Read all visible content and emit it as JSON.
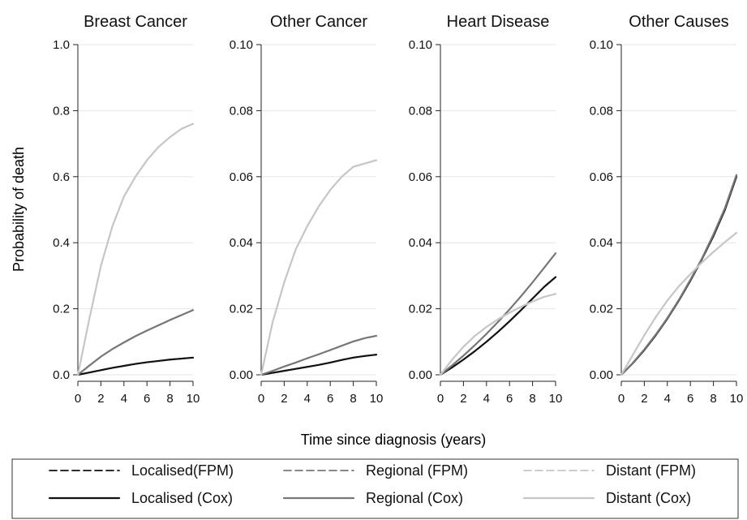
{
  "figure": {
    "ylabel": "Probability of death",
    "xlabel": "Time since diagnosis (years)"
  },
  "colors": {
    "localised": "#111111",
    "regional": "#777777",
    "distant": "#c6c6c6",
    "grid": "#e6e6e6",
    "axis": "#222222",
    "legend_border": "#333333"
  },
  "legend": {
    "items": [
      {
        "label": "Localised(FPM)",
        "group": "localised",
        "style": "dash"
      },
      {
        "label": "Regional (FPM)",
        "group": "regional",
        "style": "dash"
      },
      {
        "label": "Distant (FPM)",
        "group": "distant",
        "style": "dash"
      },
      {
        "label": "Localised (Cox)",
        "group": "localised",
        "style": "solid"
      },
      {
        "label": "Regional (Cox)",
        "group": "regional",
        "style": "solid"
      },
      {
        "label": "Distant (Cox)",
        "group": "distant",
        "style": "solid"
      }
    ]
  },
  "chart_data": [
    {
      "type": "line",
      "title": "Breast Cancer",
      "xlabel": "Time since diagnosis (years)",
      "ylabel": "Probability of death",
      "xlim": [
        0,
        10
      ],
      "ylim": [
        0,
        1.0
      ],
      "xticks": [
        0,
        2,
        4,
        6,
        8,
        10
      ],
      "yticks": [
        0,
        0.2,
        0.4,
        0.6,
        0.8,
        1.0
      ],
      "ytick_labels": [
        "0.0",
        "0.2",
        "0.4",
        "0.6",
        "0.8",
        "1.0"
      ],
      "x": [
        0,
        1,
        2,
        3,
        4,
        5,
        6,
        7,
        8,
        9,
        10
      ],
      "grid": true,
      "series": [
        {
          "name": "Localised(FPM)",
          "group": "localised",
          "style": "dash",
          "values": [
            0,
            0.007,
            0.014,
            0.021,
            0.027,
            0.033,
            0.038,
            0.042,
            0.046,
            0.049,
            0.052
          ]
        },
        {
          "name": "Localised (Cox)",
          "group": "localised",
          "style": "solid",
          "values": [
            0,
            0.007,
            0.014,
            0.021,
            0.027,
            0.033,
            0.038,
            0.042,
            0.046,
            0.049,
            0.052
          ]
        },
        {
          "name": "Regional (FPM)",
          "group": "regional",
          "style": "dash",
          "values": [
            0,
            0.028,
            0.055,
            0.078,
            0.098,
            0.117,
            0.134,
            0.15,
            0.166,
            0.181,
            0.196
          ]
        },
        {
          "name": "Regional (Cox)",
          "group": "regional",
          "style": "solid",
          "values": [
            0,
            0.028,
            0.055,
            0.078,
            0.098,
            0.117,
            0.134,
            0.15,
            0.166,
            0.181,
            0.196
          ]
        },
        {
          "name": "Distant (FPM)",
          "group": "distant",
          "style": "dash",
          "values": [
            0,
            0.17,
            0.33,
            0.45,
            0.54,
            0.6,
            0.65,
            0.69,
            0.72,
            0.745,
            0.76
          ]
        },
        {
          "name": "Distant (Cox)",
          "group": "distant",
          "style": "solid",
          "values": [
            0,
            0.17,
            0.33,
            0.45,
            0.54,
            0.6,
            0.65,
            0.69,
            0.72,
            0.745,
            0.76
          ]
        }
      ]
    },
    {
      "type": "line",
      "title": "Other Cancer",
      "xlabel": "Time since diagnosis (years)",
      "ylabel": "Probability of death",
      "xlim": [
        0,
        10
      ],
      "ylim": [
        0,
        0.1
      ],
      "xticks": [
        0,
        2,
        4,
        6,
        8,
        10
      ],
      "yticks": [
        0,
        0.02,
        0.04,
        0.06,
        0.08,
        0.1
      ],
      "ytick_labels": [
        "0.00",
        "0.02",
        "0.04",
        "0.06",
        "0.08",
        "0.10"
      ],
      "x": [
        0,
        1,
        2,
        3,
        4,
        5,
        6,
        7,
        8,
        9,
        10
      ],
      "grid": true,
      "series": [
        {
          "name": "Localised(FPM)",
          "group": "localised",
          "style": "dash",
          "values": [
            0,
            0.0006,
            0.0012,
            0.0018,
            0.0024,
            0.003,
            0.0037,
            0.0045,
            0.0052,
            0.0057,
            0.0061
          ]
        },
        {
          "name": "Localised (Cox)",
          "group": "localised",
          "style": "solid",
          "values": [
            0,
            0.0006,
            0.0012,
            0.0018,
            0.0024,
            0.003,
            0.0037,
            0.0045,
            0.0052,
            0.0057,
            0.0061
          ]
        },
        {
          "name": "Regional (FPM)",
          "group": "regional",
          "style": "dash",
          "values": [
            0,
            0.0012,
            0.0025,
            0.0037,
            0.005,
            0.0062,
            0.0075,
            0.0088,
            0.0101,
            0.0111,
            0.0118
          ]
        },
        {
          "name": "Regional (Cox)",
          "group": "regional",
          "style": "solid",
          "values": [
            0,
            0.0012,
            0.0025,
            0.0037,
            0.005,
            0.0062,
            0.0075,
            0.0088,
            0.0101,
            0.0111,
            0.0118
          ]
        },
        {
          "name": "Distant (FPM)",
          "group": "distant",
          "style": "dash",
          "values": [
            0,
            0.016,
            0.028,
            0.038,
            0.045,
            0.051,
            0.056,
            0.06,
            0.063,
            0.064,
            0.065
          ]
        },
        {
          "name": "Distant (Cox)",
          "group": "distant",
          "style": "solid",
          "values": [
            0,
            0.016,
            0.028,
            0.038,
            0.045,
            0.051,
            0.056,
            0.06,
            0.063,
            0.064,
            0.065
          ]
        }
      ]
    },
    {
      "type": "line",
      "title": "Heart Disease",
      "xlabel": "Time since diagnosis (years)",
      "ylabel": "Probability of death",
      "xlim": [
        0,
        10
      ],
      "ylim": [
        0,
        0.1
      ],
      "xticks": [
        0,
        2,
        4,
        6,
        8,
        10
      ],
      "yticks": [
        0,
        0.02,
        0.04,
        0.06,
        0.08,
        0.1
      ],
      "ytick_labels": [
        "0.00",
        "0.02",
        "0.04",
        "0.06",
        "0.08",
        "0.10"
      ],
      "x": [
        0,
        1,
        2,
        3,
        4,
        5,
        6,
        7,
        8,
        9,
        10
      ],
      "grid": true,
      "series": [
        {
          "name": "Localised(FPM)",
          "group": "localised",
          "style": "dash",
          "values": [
            0,
            0.0022,
            0.0046,
            0.0072,
            0.01,
            0.013,
            0.0162,
            0.0196,
            0.0231,
            0.0266,
            0.0296
          ]
        },
        {
          "name": "Localised (Cox)",
          "group": "localised",
          "style": "solid",
          "values": [
            0,
            0.0022,
            0.0046,
            0.0072,
            0.01,
            0.013,
            0.0162,
            0.0196,
            0.0231,
            0.0266,
            0.0296
          ]
        },
        {
          "name": "Regional (FPM)",
          "group": "regional",
          "style": "dash",
          "values": [
            0,
            0.0028,
            0.0058,
            0.009,
            0.0124,
            0.016,
            0.0198,
            0.0238,
            0.028,
            0.0324,
            0.0368
          ]
        },
        {
          "name": "Regional (Cox)",
          "group": "regional",
          "style": "solid",
          "values": [
            0,
            0.0028,
            0.0058,
            0.009,
            0.0124,
            0.016,
            0.0198,
            0.0238,
            0.028,
            0.0324,
            0.0368
          ]
        },
        {
          "name": "Distant (FPM)",
          "group": "distant",
          "style": "dash",
          "values": [
            0,
            0.0045,
            0.0085,
            0.0118,
            0.0145,
            0.0168,
            0.0188,
            0.0206,
            0.0222,
            0.0236,
            0.0245
          ]
        },
        {
          "name": "Distant (Cox)",
          "group": "distant",
          "style": "solid",
          "values": [
            0,
            0.0045,
            0.0085,
            0.0118,
            0.0145,
            0.0168,
            0.0188,
            0.0206,
            0.0222,
            0.0236,
            0.0245
          ]
        }
      ]
    },
    {
      "type": "line",
      "title": "Other Causes",
      "xlabel": "Time since diagnosis (years)",
      "ylabel": "Probability of death",
      "xlim": [
        0,
        10
      ],
      "ylim": [
        0,
        0.1
      ],
      "xticks": [
        0,
        2,
        4,
        6,
        8,
        10
      ],
      "yticks": [
        0,
        0.02,
        0.04,
        0.06,
        0.08,
        0.1
      ],
      "ytick_labels": [
        "0.00",
        "0.02",
        "0.04",
        "0.06",
        "0.08",
        "0.10"
      ],
      "x": [
        0,
        1,
        2,
        3,
        4,
        5,
        6,
        7,
        8,
        9,
        10
      ],
      "grid": true,
      "series": [
        {
          "name": "Localised(FPM)",
          "group": "localised",
          "style": "dash",
          "values": [
            0,
            0.0035,
            0.0075,
            0.012,
            0.017,
            0.0225,
            0.0285,
            0.035,
            0.042,
            0.05,
            0.06
          ]
        },
        {
          "name": "Localised (Cox)",
          "group": "localised",
          "style": "solid",
          "values": [
            0,
            0.0035,
            0.0075,
            0.012,
            0.017,
            0.0225,
            0.0285,
            0.035,
            0.042,
            0.05,
            0.06
          ]
        },
        {
          "name": "Regional (FPM)",
          "group": "regional",
          "style": "dash",
          "values": [
            0,
            0.0036,
            0.0077,
            0.0122,
            0.0172,
            0.0227,
            0.0288,
            0.0352,
            0.0425,
            0.0505,
            0.0605
          ]
        },
        {
          "name": "Regional (Cox)",
          "group": "regional",
          "style": "solid",
          "values": [
            0,
            0.0036,
            0.0077,
            0.0122,
            0.0172,
            0.0227,
            0.0288,
            0.0352,
            0.0425,
            0.0505,
            0.0605
          ]
        },
        {
          "name": "Distant (FPM)",
          "group": "distant",
          "style": "dash",
          "values": [
            0,
            0.006,
            0.012,
            0.0175,
            0.0225,
            0.0268,
            0.0305,
            0.034,
            0.0372,
            0.0402,
            0.043
          ]
        },
        {
          "name": "Distant (Cox)",
          "group": "distant",
          "style": "solid",
          "values": [
            0,
            0.006,
            0.012,
            0.0175,
            0.0225,
            0.0268,
            0.0305,
            0.034,
            0.0372,
            0.0402,
            0.043
          ]
        }
      ]
    }
  ]
}
